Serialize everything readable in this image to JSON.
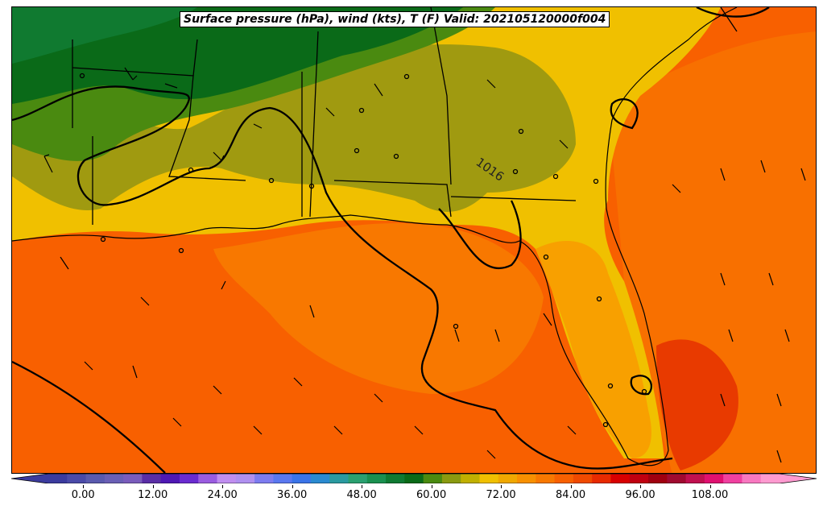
{
  "title": "Surface pressure (hPa), wind (kts), T (F) Valid: 202105120000f004",
  "isobar_label": "1016",
  "colorbar": {
    "tick_labels": [
      "0.00",
      "12.00",
      "24.00",
      "36.00",
      "48.00",
      "60.00",
      "72.00",
      "84.00",
      "96.00",
      "108.00"
    ],
    "tick_values": [
      0,
      12,
      24,
      36,
      48,
      60,
      72,
      84,
      96,
      108
    ],
    "min": -6,
    "max": 120,
    "colors": [
      "#3b3b9e",
      "#4a4aa8",
      "#5a5aae",
      "#6a5fb5",
      "#7a5cbc",
      "#5a2ea6",
      "#4f18b4",
      "#6a2bd0",
      "#9a5ce0",
      "#c08ef0",
      "#b090f0",
      "#7d7cf0",
      "#5a78f0",
      "#3a74e8",
      "#2a8ad0",
      "#2a9aa0",
      "#2aa070",
      "#1a9050",
      "#0f7a32",
      "#0a6a18",
      "#4a8a10",
      "#8a9a10",
      "#c0b000",
      "#f0c000",
      "#f0a800",
      "#f89000",
      "#f87800",
      "#f86000",
      "#f04a00",
      "#e82a00",
      "#d80000",
      "#c00010",
      "#a00010",
      "#a00a30",
      "#c01050",
      "#e01070",
      "#f040a0",
      "#f878c0",
      "#ff9ad0"
    ]
  },
  "map_colors": {
    "frame": "#000000",
    "green_dark": "#0a6a18",
    "green_mid": "#4a8a10",
    "olive": "#a09a10",
    "yellow": "#f0c000",
    "orange_light": "#f8a000",
    "orange": "#f88000",
    "orange_red": "#f86000",
    "red_orange": "#e83a00"
  }
}
